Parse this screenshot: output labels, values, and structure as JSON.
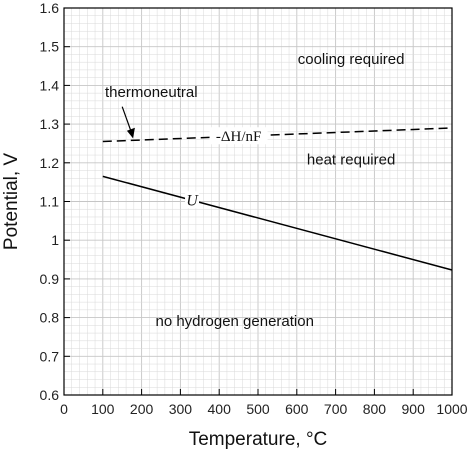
{
  "chart_data": {
    "type": "line",
    "xlabel": "Temperature, °C",
    "ylabel": "Potential, V",
    "xlim": [
      0,
      1000
    ],
    "ylim": [
      0.6,
      1.6
    ],
    "grid": true,
    "x_ticks": [
      "0",
      "100",
      "200",
      "300",
      "400",
      "500",
      "600",
      "700",
      "800",
      "900",
      "1000"
    ],
    "y_ticks": [
      "0.6",
      "0.7",
      "0.8",
      "0.9",
      "1",
      "1.1",
      "1.2",
      "1.3",
      "1.4",
      "1.5",
      "1.6"
    ],
    "series": [
      {
        "name": "-ΔH/nF",
        "style": "dashed",
        "color": "#000000",
        "x": [
          100,
          1000
        ],
        "y": [
          1.255,
          1.29
        ]
      },
      {
        "name": "U",
        "style": "solid",
        "color": "#000000",
        "x": [
          100,
          1000
        ],
        "y": [
          1.165,
          0.923
        ]
      }
    ],
    "annotations": [
      {
        "text": "thermoneutral",
        "x": 225,
        "y": 1.37
      },
      {
        "text": "cooling required",
        "x": 740,
        "y": 1.455
      },
      {
        "text": "heat required",
        "x": 740,
        "y": 1.195
      },
      {
        "text": "no hydrogen generation",
        "x": 440,
        "y": 0.778
      }
    ]
  }
}
